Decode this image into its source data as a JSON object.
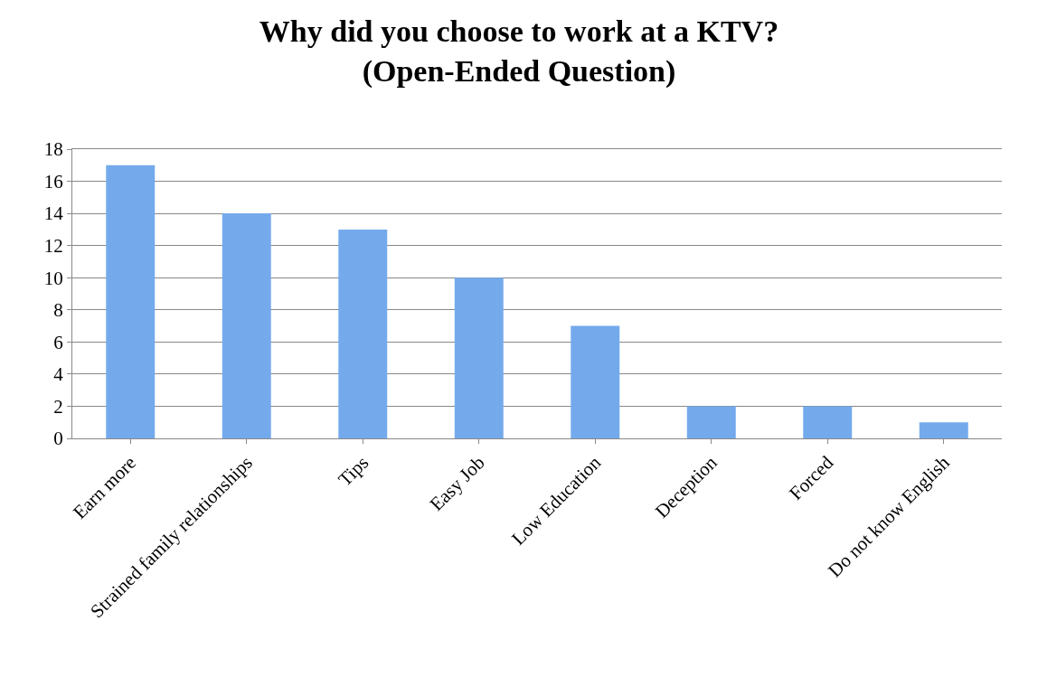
{
  "chart_data": {
    "type": "bar",
    "title": "Why did you choose to work at a KTV?\n(Open-Ended Question)",
    "categories": [
      "Earn more",
      "Strained family relationships",
      "Tips",
      "Easy Job",
      "Low Education",
      "Deception",
      "Forced",
      "Do not know English"
    ],
    "values": [
      17,
      14,
      13,
      10,
      7,
      2,
      2,
      1
    ],
    "color": "#74aaec",
    "ylim": [
      0,
      18
    ],
    "yticks": [
      0,
      2,
      4,
      6,
      8,
      10,
      12,
      14,
      16,
      18
    ],
    "grid": "y"
  }
}
